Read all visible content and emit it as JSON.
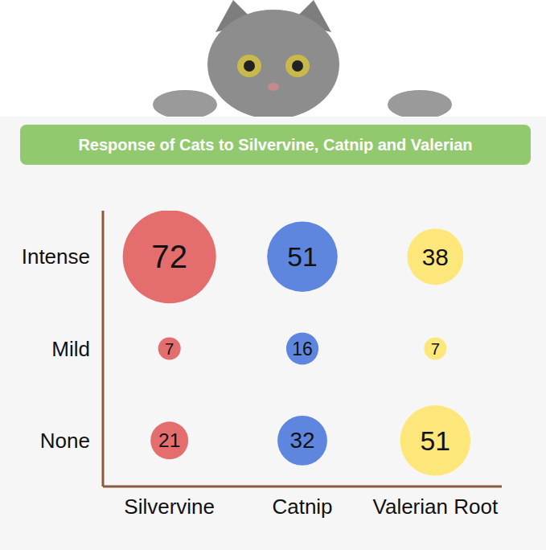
{
  "chart_data": {
    "type": "bubble",
    "title": "Response of Cats to Silvervine, Catnip and Valerian",
    "categories": [
      "Silvervine",
      "Catnip",
      "Valerian Root"
    ],
    "y_categories": [
      "Intense",
      "Mild",
      "None"
    ],
    "colors": [
      "#e46d6d",
      "#5e86de",
      "#fde77a"
    ],
    "values": [
      [
        72,
        51,
        38
      ],
      [
        7,
        16,
        7
      ],
      [
        21,
        32,
        51
      ]
    ],
    "data_labels": true
  }
}
